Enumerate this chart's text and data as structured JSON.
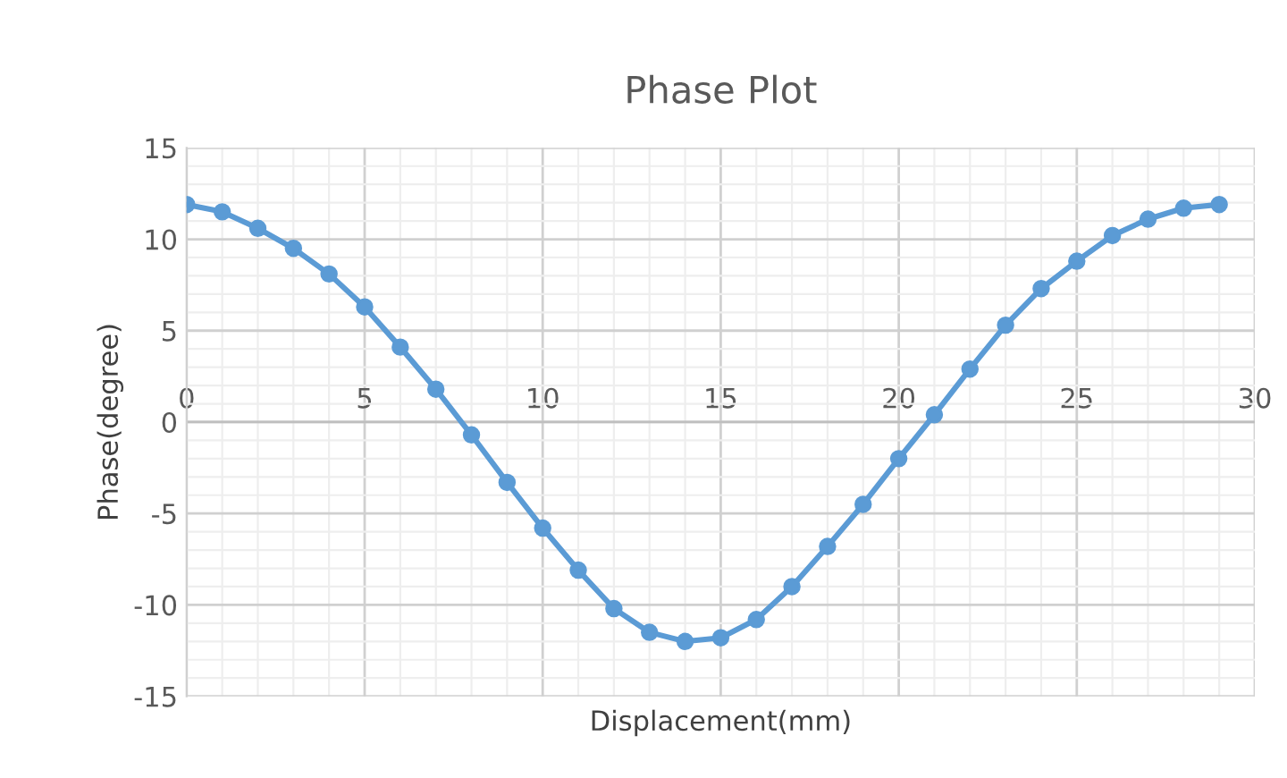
{
  "chart_data": {
    "type": "line",
    "title": "Phase Plot",
    "xlabel": "Displacement(mm)",
    "ylabel": "Phase(degree)",
    "x": [
      0,
      1,
      2,
      3,
      4,
      5,
      6,
      7,
      8,
      9,
      10,
      11,
      12,
      13,
      14,
      15,
      16,
      17,
      18,
      19,
      20,
      21,
      22,
      23,
      24,
      25,
      26,
      27,
      28,
      29
    ],
    "series": [
      {
        "color": "#5b9bd5",
        "values": [
          11.9,
          11.5,
          10.6,
          9.5,
          8.1,
          6.3,
          4.1,
          1.8,
          -0.7,
          -3.3,
          -5.8,
          -8.1,
          -10.2,
          -11.5,
          -12.0,
          -11.8,
          -10.8,
          -9.0,
          -6.8,
          -4.5,
          -2.0,
          0.4,
          2.9,
          5.3,
          7.3,
          8.8,
          10.2,
          11.1,
          11.7,
          11.9
        ]
      }
    ],
    "xlim": [
      0,
      30
    ],
    "xticks": [
      0,
      5,
      10,
      15,
      20,
      25,
      30
    ],
    "ylim": [
      -15,
      15
    ],
    "yticks": [
      -15,
      -10,
      -5,
      0,
      5,
      10,
      15
    ],
    "grid": true,
    "marker": "circle",
    "line_style": "solid"
  }
}
